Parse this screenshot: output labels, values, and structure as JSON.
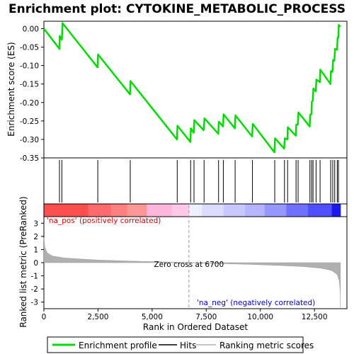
{
  "chart_data": {
    "type": "line",
    "title": "Enrichment plot: CYTOKINE_METABOLIC_PROCESS",
    "top_panel": {
      "ylabel": "Enrichment score (ES)",
      "ylim": [
        -0.35,
        0.02
      ],
      "yticks": [
        0.0,
        -0.05,
        -0.1,
        -0.15,
        -0.2,
        -0.25,
        -0.3,
        -0.35
      ],
      "ytick_labels": [
        "0.00",
        "-0.05",
        "-0.10",
        "-0.15",
        "-0.20",
        "-0.25",
        "-0.30",
        "-0.35"
      ],
      "series": [
        {
          "name": "Enrichment profile",
          "color": "#00dd00",
          "points": [
            [
              0,
              0.0
            ],
            [
              720,
              -0.055
            ],
            [
              730,
              -0.02
            ],
            [
              830,
              -0.03
            ],
            [
              860,
              0.015
            ],
            [
              2480,
              -0.105
            ],
            [
              2500,
              -0.07
            ],
            [
              3980,
              -0.178
            ],
            [
              4000,
              -0.142
            ],
            [
              6150,
              -0.3
            ],
            [
              6170,
              -0.263
            ],
            [
              6770,
              -0.307
            ],
            [
              6790,
              -0.27
            ],
            [
              6920,
              -0.282
            ],
            [
              6950,
              -0.248
            ],
            [
              7380,
              -0.275
            ],
            [
              7420,
              -0.243
            ],
            [
              8060,
              -0.285
            ],
            [
              8080,
              -0.252
            ],
            [
              8280,
              -0.265
            ],
            [
              8300,
              -0.232
            ],
            [
              8820,
              -0.27
            ],
            [
              8850,
              -0.235
            ],
            [
              9620,
              -0.292
            ],
            [
              9650,
              -0.258
            ],
            [
              10650,
              -0.335
            ],
            [
              10680,
              -0.297
            ],
            [
              11100,
              -0.325
            ],
            [
              11130,
              -0.297
            ],
            [
              11250,
              -0.3
            ],
            [
              11270,
              -0.267
            ],
            [
              11640,
              -0.29
            ],
            [
              11660,
              -0.26
            ],
            [
              11730,
              -0.26
            ],
            [
              11760,
              -0.227
            ],
            [
              12280,
              -0.265
            ],
            [
              12300,
              -0.233
            ],
            [
              12360,
              -0.232
            ],
            [
              12380,
              -0.198
            ],
            [
              12420,
              -0.195
            ],
            [
              12450,
              -0.162
            ],
            [
              12560,
              -0.17
            ],
            [
              12590,
              -0.138
            ],
            [
              12750,
              -0.145
            ],
            [
              12770,
              -0.111
            ],
            [
              13240,
              -0.15
            ],
            [
              13260,
              -0.115
            ],
            [
              13330,
              -0.117
            ],
            [
              13360,
              -0.085
            ],
            [
              13420,
              -0.087
            ],
            [
              13450,
              -0.055
            ],
            [
              13540,
              -0.057
            ],
            [
              13570,
              -0.025
            ],
            [
              13600,
              -0.025
            ],
            [
              13620,
              0.01
            ],
            [
              13700,
              0.005
            ]
          ]
        }
      ]
    },
    "hits": {
      "name": "Hits",
      "ranks": [
        720,
        830,
        2490,
        3990,
        6160,
        6780,
        6935,
        7400,
        8070,
        8290,
        8835,
        9635,
        10665,
        11115,
        11260,
        11650,
        11745,
        12290,
        12370,
        12435,
        12575,
        12760,
        13250,
        13345,
        13435,
        13555,
        13610
      ]
    },
    "ranking_panel": {
      "ylabel": "Ranked list metric (PreRanked)",
      "ylim": [
        -3.5,
        3.5
      ],
      "yticks": [
        3,
        2,
        1,
        0,
        -1,
        -2,
        -3
      ],
      "ytick_labels": [
        "3",
        "2",
        "1",
        "0",
        "-1",
        "-2",
        "-3"
      ],
      "xlabel": "Rank in Ordered Dataset",
      "xlim": [
        0,
        14000
      ],
      "xticks": [
        0,
        2500,
        5000,
        7500,
        10000,
        12500
      ],
      "xtick_labels": [
        "0",
        "2,500",
        "5,000",
        "7,500",
        "10,000",
        "12,500"
      ],
      "metric_curve": [
        [
          0,
          1.9
        ],
        [
          40,
          1.2
        ],
        [
          150,
          0.75
        ],
        [
          400,
          0.5
        ],
        [
          1000,
          0.35
        ],
        [
          2500,
          0.2
        ],
        [
          4000,
          0.12
        ],
        [
          5500,
          0.06
        ],
        [
          6700,
          0.0
        ],
        [
          8000,
          -0.06
        ],
        [
          9500,
          -0.13
        ],
        [
          11000,
          -0.22
        ],
        [
          12000,
          -0.3
        ],
        [
          12800,
          -0.42
        ],
        [
          13300,
          -0.6
        ],
        [
          13550,
          -0.9
        ],
        [
          13650,
          -1.4
        ],
        [
          13690,
          -2.2
        ],
        [
          13700,
          -3.4
        ]
      ],
      "zero_cross_rank": 6700,
      "zero_cross_label": "Zero cross at 6700",
      "pos_label": "'na_pos' (positively correlated)",
      "neg_label": "'na_neg' (negatively correlated)",
      "pos_color": "#dd0000",
      "neg_color": "#0000cc",
      "fill_color": "#b0b0b0"
    },
    "colorbar_segments": [
      {
        "from": 0,
        "to": 2050,
        "color": "#ff4f4f"
      },
      {
        "from": 2050,
        "to": 3100,
        "color": "#ff6a6a"
      },
      {
        "from": 3100,
        "to": 3850,
        "color": "#ff8080"
      },
      {
        "from": 3850,
        "to": 4750,
        "color": "#ff9696"
      },
      {
        "from": 4750,
        "to": 5900,
        "color": "#ffb6dc"
      },
      {
        "from": 5900,
        "to": 6700,
        "color": "#ffc8e8"
      },
      {
        "from": 6700,
        "to": 7300,
        "color": "#eeeeff"
      },
      {
        "from": 7300,
        "to": 8300,
        "color": "#dcdcff"
      },
      {
        "from": 8300,
        "to": 9300,
        "color": "#c8c8ff"
      },
      {
        "from": 9300,
        "to": 10200,
        "color": "#b4b4ff"
      },
      {
        "from": 10200,
        "to": 11200,
        "color": "#9696ff"
      },
      {
        "from": 11200,
        "to": 12200,
        "color": "#7070ff"
      },
      {
        "from": 12200,
        "to": 13300,
        "color": "#5050ff"
      },
      {
        "from": 13300,
        "to": 13700,
        "color": "#1a1aee"
      }
    ],
    "legend": [
      {
        "label": "Enrichment profile",
        "color": "#00dd00"
      },
      {
        "label": "Hits",
        "color": "#000000"
      },
      {
        "label": "Ranking metric scores",
        "color": "#b0b0b0"
      }
    ]
  }
}
